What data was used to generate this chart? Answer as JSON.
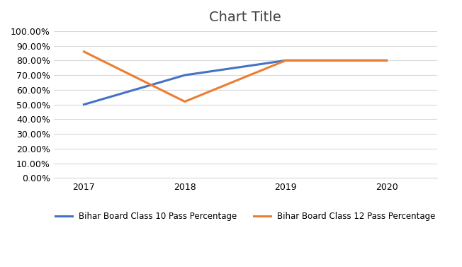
{
  "title": "Chart Title",
  "years": [
    2017,
    2018,
    2019,
    2020
  ],
  "class10": [
    0.5,
    0.7,
    0.8,
    0.8
  ],
  "class12": [
    0.86,
    0.52,
    0.8,
    0.8
  ],
  "class10_color": "#4472C4",
  "class12_color": "#ED7D31",
  "class10_label": "Bihar Board Class 10 Pass Percentage",
  "class12_label": "Bihar Board Class 12 Pass Percentage",
  "ylim": [
    0.0,
    1.0
  ],
  "yticks": [
    0.0,
    0.1,
    0.2,
    0.3,
    0.4,
    0.5,
    0.6,
    0.7,
    0.8,
    0.9,
    1.0
  ],
  "background_color": "#ffffff",
  "plot_bg_color": "#ffffff",
  "grid_color": "#d9d9d9",
  "title_fontsize": 14,
  "line_width": 2.2,
  "marker": null,
  "tick_fontsize": 9,
  "xlim_left": 2016.7,
  "xlim_right": 2020.5
}
